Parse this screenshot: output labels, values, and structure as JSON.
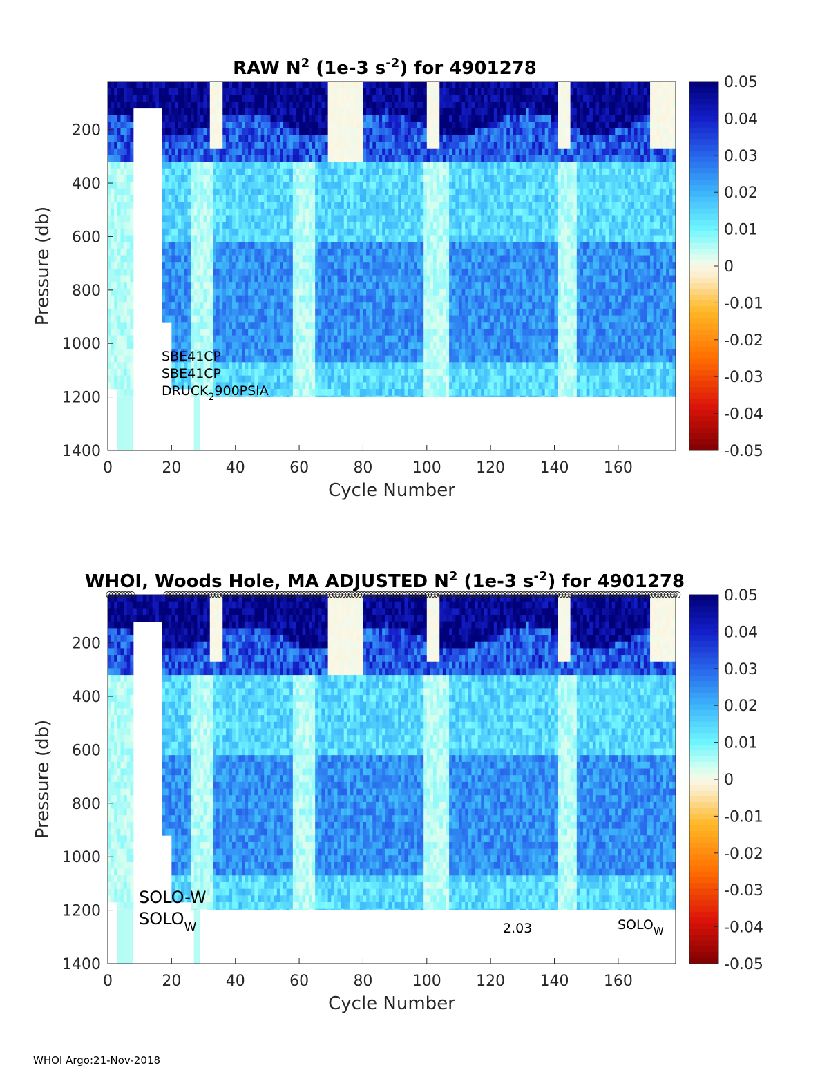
{
  "chart_data": [
    {
      "type": "heatmap",
      "title_parts": {
        "prefix": "RAW N",
        "sup1": "2",
        "mid": " (1e-3 s",
        "sup2": "-2",
        "suffix": ") for 4901278"
      },
      "xlabel": "Cycle Number",
      "ylabel": "Pressure (db)",
      "xlim": [
        0,
        178
      ],
      "ylim": [
        1400,
        20
      ],
      "y_reversed": true,
      "x_ticks": [
        0,
        20,
        40,
        60,
        80,
        100,
        120,
        140,
        160
      ],
      "y_ticks": [
        200,
        400,
        600,
        800,
        1000,
        1200,
        1400
      ],
      "colorbar": {
        "min": -0.05,
        "max": 0.05,
        "ticks": [
          "0.05",
          "0.04",
          "0.03",
          "0.02",
          "0.01",
          "0",
          "-0.01",
          "-0.02",
          "-0.03",
          "-0.04",
          "-0.05"
        ]
      },
      "annotations": {
        "sensor1": "SBE41CP",
        "sensor2": "SBE41CP",
        "pressure_sensor_main": "DRUCK",
        "pressure_sensor_sub": "2",
        "pressure_sensor_rest": "900PSIA"
      }
    },
    {
      "type": "heatmap",
      "title_parts": {
        "prefix": "WHOI, Woods Hole, MA  ADJUSTED N",
        "sup1": "2",
        "mid": " (1e-3 s",
        "sup2": "-2",
        "suffix": ") for 4901278"
      },
      "xlabel": "Cycle Number",
      "ylabel": "Pressure (db)",
      "xlim": [
        0,
        178
      ],
      "ylim": [
        1400,
        20
      ],
      "y_reversed": true,
      "x_ticks": [
        0,
        20,
        40,
        60,
        80,
        100,
        120,
        140,
        160
      ],
      "y_ticks": [
        200,
        400,
        600,
        800,
        1000,
        1200,
        1400
      ],
      "colorbar": {
        "min": -0.05,
        "max": 0.05,
        "ticks": [
          "0.05",
          "0.04",
          "0.03",
          "0.02",
          "0.01",
          "0",
          "-0.01",
          "-0.02",
          "-0.03",
          "-0.04",
          "-0.05"
        ]
      },
      "annotations": {
        "float_type": "SOLO-W",
        "float_type2_main": "SOLO",
        "float_type2_sub": "W",
        "version": "2.03",
        "float_type3_main": "SOLO",
        "float_type3_sub": "W"
      }
    }
  ],
  "footer": "WHOI Argo:21-Nov-2018"
}
